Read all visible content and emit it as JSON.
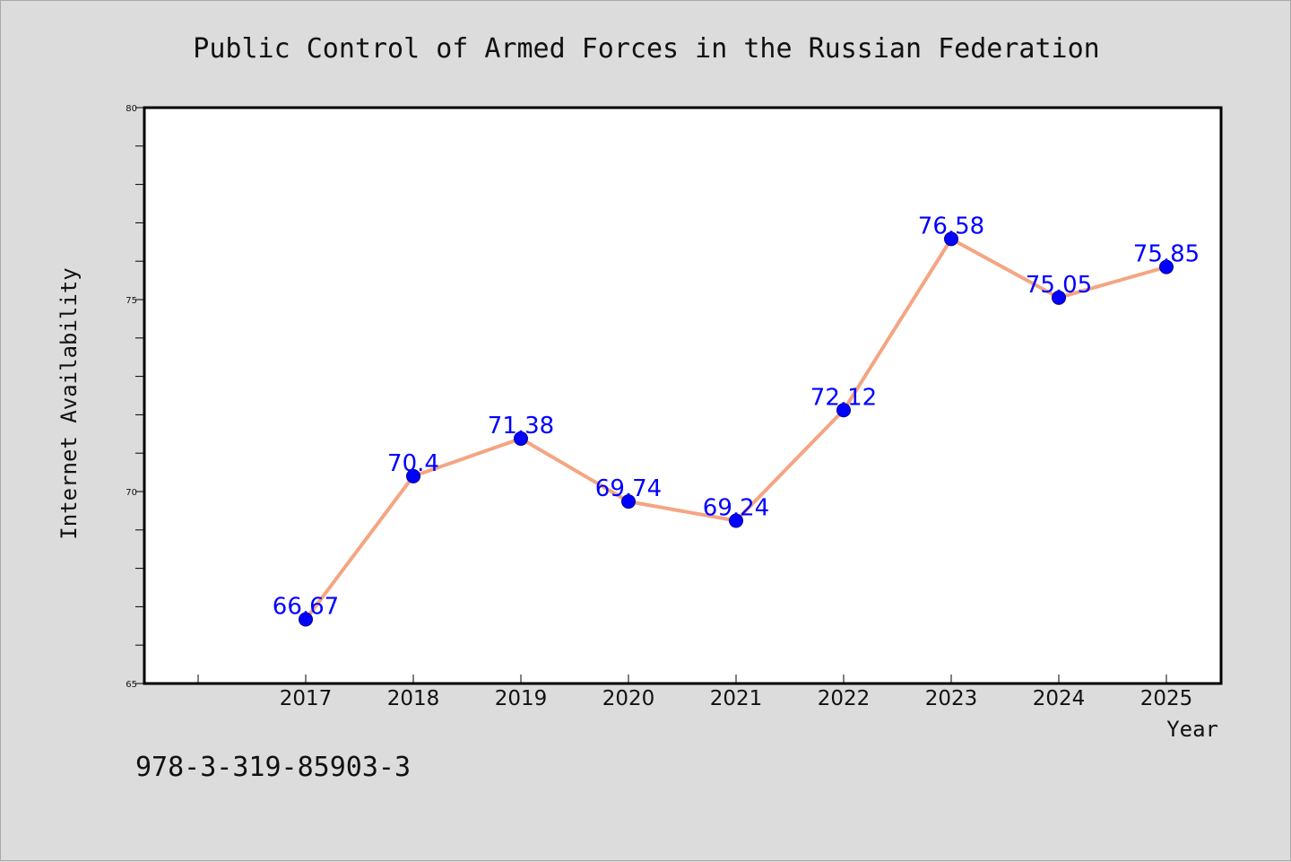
{
  "chart_data": {
    "type": "line",
    "title": "Public Control of Armed Forces in the Russian Federation",
    "xlabel": "Year",
    "ylabel": "Internet Availability",
    "categories": [
      "2017",
      "2018",
      "2019",
      "2020",
      "2021",
      "2022",
      "2023",
      "2024",
      "2025"
    ],
    "series": [
      {
        "values": [
          66.67,
          70.4,
          71.38,
          69.74,
          69.24,
          72.12,
          76.58,
          75.05,
          75.85
        ],
        "labels": [
          "66.67",
          "70.4",
          "71.38",
          "69.74",
          "69.24",
          "72.12",
          "76.58",
          "75.05",
          "75.85"
        ]
      }
    ],
    "ylim": [
      65,
      80
    ],
    "yticks": [
      65,
      70,
      75,
      80
    ],
    "ytick_labels": [
      "65",
      "70",
      "75",
      "80"
    ],
    "grid": false,
    "line_color": "#f4a582",
    "marker_color": "#0000ff",
    "label_color": "#0000ff"
  },
  "footer": {
    "isbn": "978-3-319-85903-3"
  }
}
